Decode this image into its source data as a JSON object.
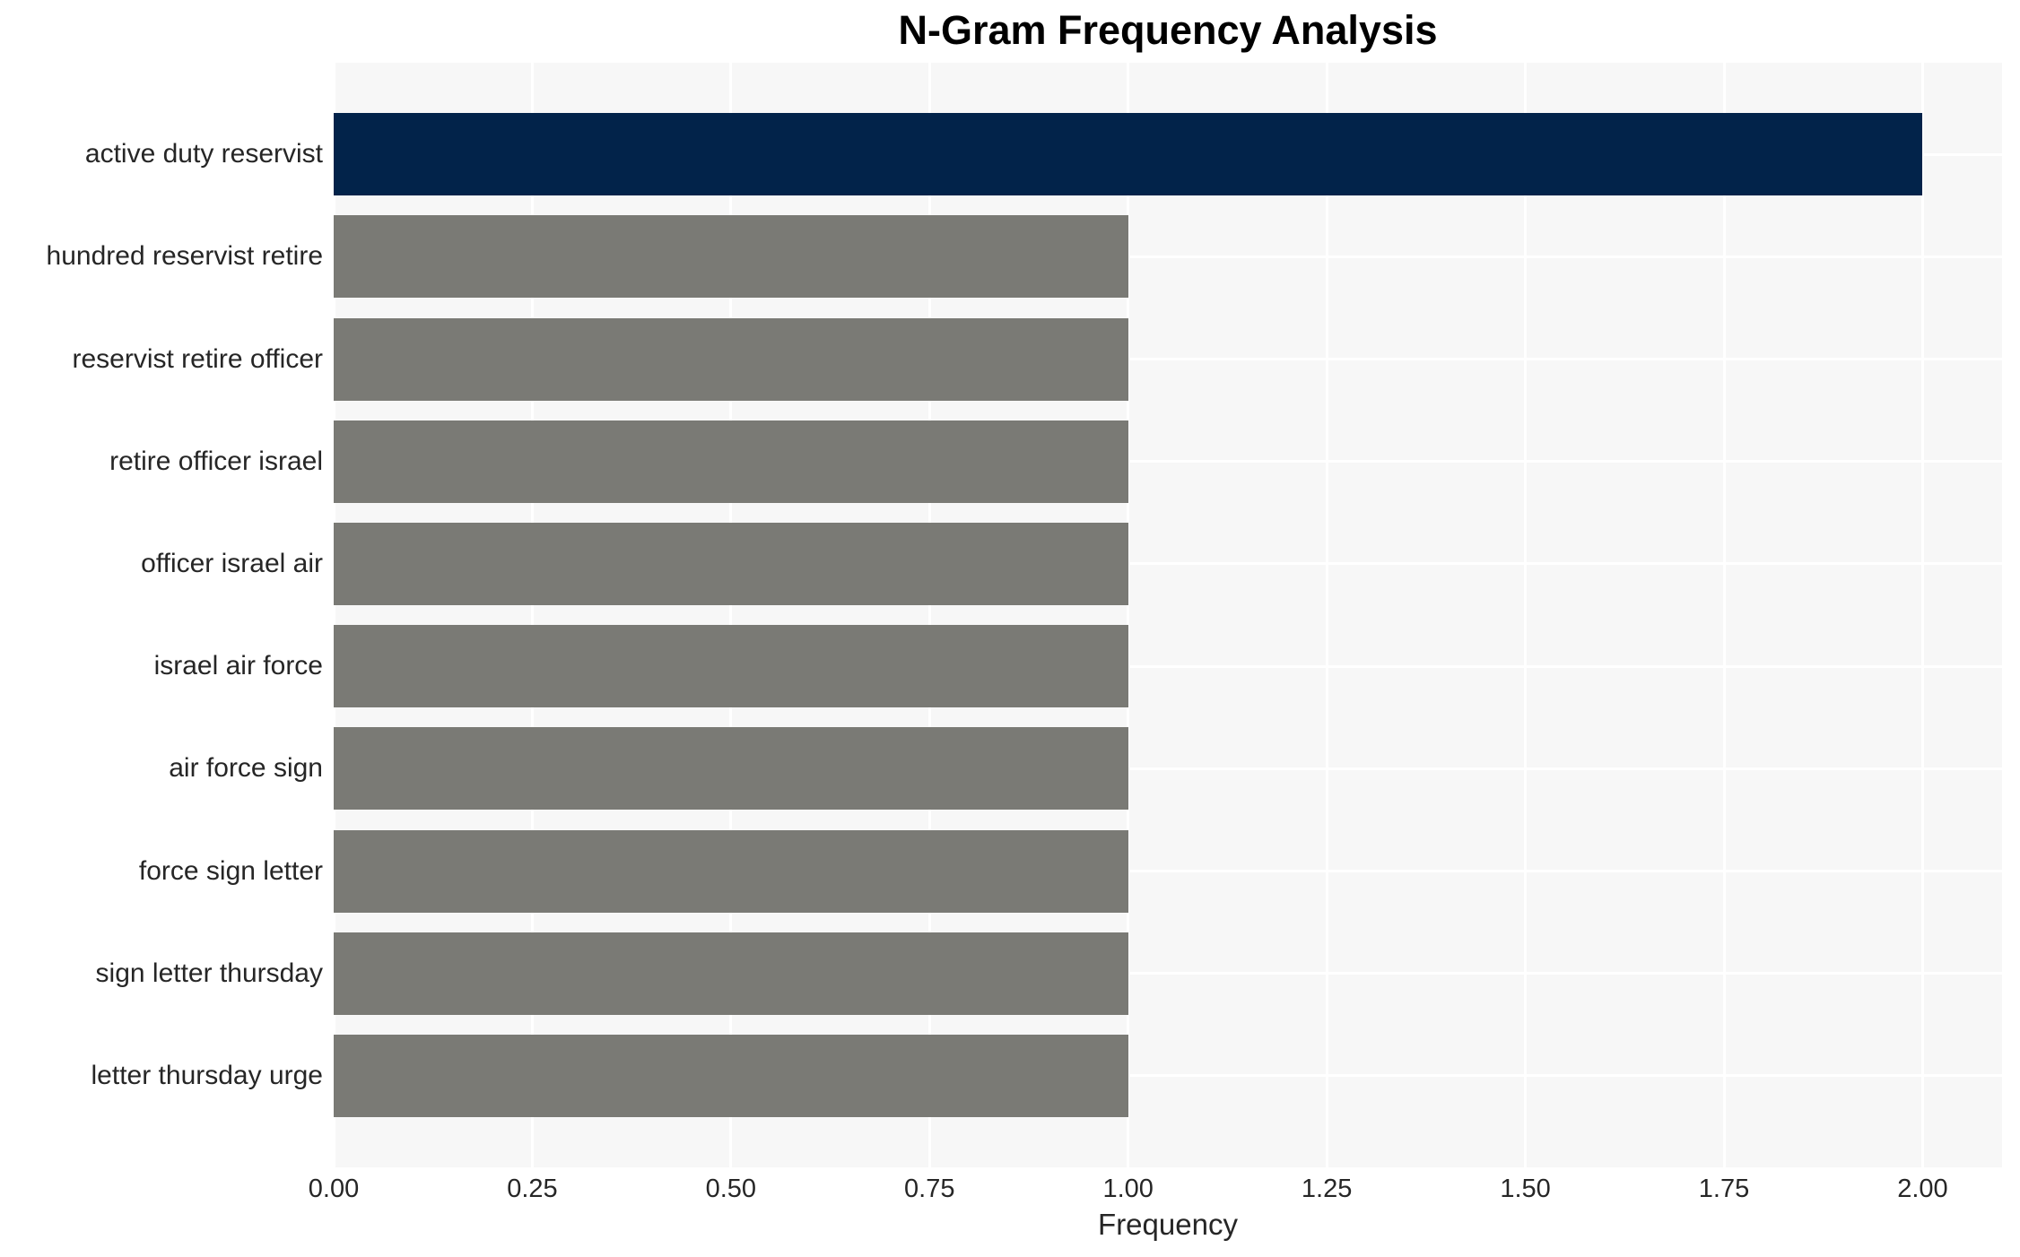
{
  "chart_data": {
    "type": "bar",
    "orientation": "horizontal",
    "title": "N-Gram Frequency Analysis",
    "xlabel": "Frequency",
    "ylabel": "",
    "categories": [
      "active duty reservist",
      "hundred reservist retire",
      "reservist retire officer",
      "retire officer israel",
      "officer israel air",
      "israel air force",
      "air force sign",
      "force sign letter",
      "sign letter thursday",
      "letter thursday urge"
    ],
    "values": [
      2,
      1,
      1,
      1,
      1,
      1,
      1,
      1,
      1,
      1
    ],
    "bar_colors": [
      "#02234a",
      "#7a7a75",
      "#7a7a75",
      "#7a7a75",
      "#7a7a75",
      "#7a7a75",
      "#7a7a75",
      "#7a7a75",
      "#7a7a75",
      "#7a7a75"
    ],
    "xlim": [
      0,
      2.1
    ],
    "xticks": [
      0,
      0.25,
      0.5,
      0.75,
      1.0,
      1.25,
      1.5,
      1.75,
      2.0
    ],
    "xtick_labels": [
      "0.00",
      "0.25",
      "0.50",
      "0.75",
      "1.00",
      "1.25",
      "1.50",
      "1.75",
      "2.00"
    ],
    "grid": true,
    "legend": false,
    "colors": {
      "highlight_bar": "#02234a",
      "default_bar": "#7a7a75",
      "plot_background": "#f7f7f7",
      "gridline": "#ffffff",
      "tick_text": "#262626",
      "title_text": "#000000"
    }
  }
}
